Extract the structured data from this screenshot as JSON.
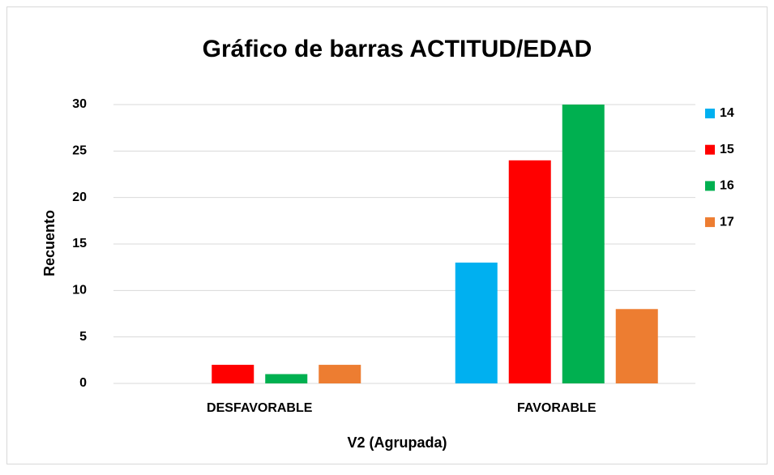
{
  "chart_data": {
    "type": "bar",
    "title": "Gráfico de barras ACTITUD/EDAD",
    "x_label": "V2 (Agrupada)",
    "y_label": "Recuento",
    "categories": [
      "DESFAVORABLE",
      "FAVORABLE"
    ],
    "series": [
      {
        "name": "14",
        "color": "#00b0f0",
        "values": [
          0,
          13
        ]
      },
      {
        "name": "15",
        "color": "#ff0000",
        "values": [
          2,
          24
        ]
      },
      {
        "name": "16",
        "color": "#00b050",
        "values": [
          1,
          30
        ]
      },
      {
        "name": "17",
        "color": "#ed7d31",
        "values": [
          2,
          8
        ]
      }
    ],
    "ylim": [
      0,
      30
    ],
    "yticks": [
      0,
      5,
      10,
      15,
      20,
      25,
      30
    ],
    "grid": true,
    "legend": "right"
  }
}
